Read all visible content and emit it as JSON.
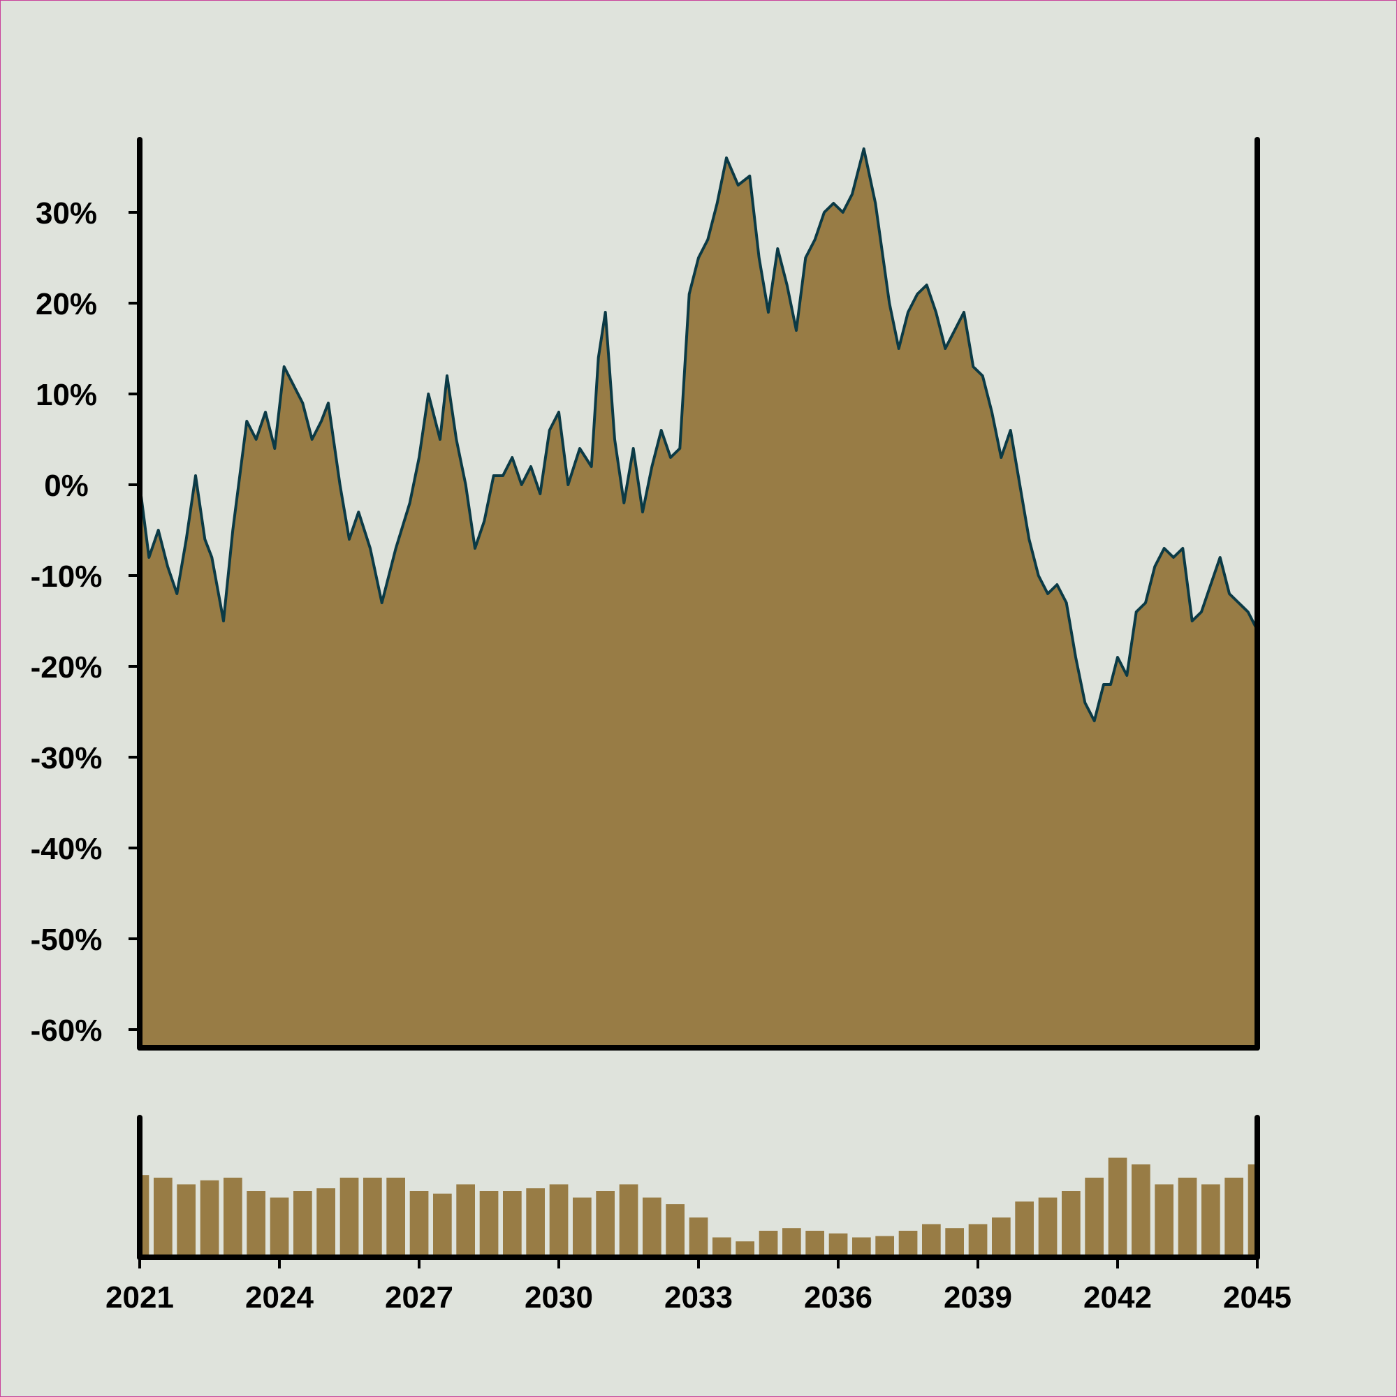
{
  "chart_data": [
    {
      "type": "area",
      "title": "",
      "xlabel": "",
      "ylabel": "",
      "xlim": [
        2021,
        2045
      ],
      "ylim": [
        -62,
        38
      ],
      "yticks": [
        -60,
        -50,
        -40,
        -30,
        -20,
        -10,
        0,
        10,
        20,
        30
      ],
      "ytick_labels": [
        "-60%",
        "-50%",
        "-40%",
        "-30%",
        "-20%",
        "-10%",
        "0%",
        "10%",
        "20%",
        "30%"
      ],
      "grid": false,
      "colors": {
        "fill": "#987c45",
        "line": "#0b3a45",
        "axis": "#000000",
        "background": "#dfe3dc"
      },
      "series": [
        {
          "x": [
            2021.0,
            2021.2,
            2021.4,
            2021.6,
            2021.8,
            2022.0,
            2022.2,
            2022.4,
            2022.55,
            2022.8,
            2023.0,
            2023.3,
            2023.5,
            2023.7,
            2023.9,
            2024.1,
            2024.3,
            2024.5,
            2024.7,
            2024.9,
            2025.05,
            2025.3,
            2025.5,
            2025.7,
            2025.95,
            2026.2,
            2026.5,
            2026.8,
            2027.0,
            2027.2,
            2027.45,
            2027.6,
            2027.8,
            2028.0,
            2028.2,
            2028.4,
            2028.6,
            2028.8,
            2029.0,
            2029.2,
            2029.4,
            2029.6,
            2029.8,
            2030.0,
            2030.2,
            2030.45,
            2030.7,
            2030.85,
            2031.0,
            2031.2,
            2031.4,
            2031.6,
            2031.8,
            2032.0,
            2032.2,
            2032.4,
            2032.6,
            2032.8,
            2033.0,
            2033.2,
            2033.4,
            2033.6,
            2033.85,
            2034.1,
            2034.3,
            2034.5,
            2034.7,
            2034.9,
            2035.1,
            2035.3,
            2035.5,
            2035.7,
            2035.9,
            2036.1,
            2036.3,
            2036.55,
            2036.8,
            2037.1,
            2037.3,
            2037.5,
            2037.7,
            2037.9,
            2038.1,
            2038.3,
            2038.5,
            2038.7,
            2038.9,
            2039.1,
            2039.3,
            2039.5,
            2039.7,
            2039.9,
            2040.1,
            2040.3,
            2040.5,
            2040.7,
            2040.9,
            2041.1,
            2041.3,
            2041.5,
            2041.7,
            2041.85,
            2042.0,
            2042.2,
            2042.4,
            2042.6,
            2042.8,
            2043.0,
            2043.2,
            2043.4,
            2043.6,
            2043.8,
            2044.0,
            2044.2,
            2044.4,
            2044.6,
            2044.8,
            2045.0
          ],
          "y": [
            0,
            -8,
            -5,
            -9,
            -12,
            -6,
            1,
            -6,
            -8,
            -15,
            -5,
            7,
            5,
            8,
            4,
            13,
            11,
            9,
            5,
            7,
            9,
            0,
            -6,
            -3,
            -7,
            -13,
            -7,
            -2,
            3,
            10,
            5,
            12,
            5,
            0,
            -7,
            -4,
            1,
            1,
            3,
            0,
            2,
            -1,
            6,
            8,
            0,
            4,
            2,
            14,
            19,
            5,
            -2,
            4,
            -3,
            2,
            6,
            3,
            4,
            21,
            25,
            27,
            31,
            36,
            33,
            34,
            25,
            19,
            26,
            22,
            17,
            25,
            27,
            30,
            31,
            30,
            32,
            37,
            31,
            20,
            15,
            19,
            21,
            22,
            19,
            15,
            17,
            19,
            13,
            12,
            8,
            3,
            6,
            0,
            -6,
            -10,
            -12,
            -11,
            -13,
            -19,
            -24,
            -26,
            -22,
            -22,
            -19,
            -21,
            -14,
            -13,
            -9,
            -7,
            -8,
            -7,
            -15,
            -14,
            -11,
            -8,
            -12,
            -13,
            -14,
            -16
          ]
        }
      ]
    },
    {
      "type": "bar",
      "title": "",
      "xlabel": "",
      "ylabel": "",
      "xlim": [
        2021,
        2045
      ],
      "xticks": [
        2021,
        2024,
        2027,
        2030,
        2033,
        2036,
        2039,
        2042,
        2045
      ],
      "xtick_labels": [
        "2021",
        "2024",
        "2027",
        "2030",
        "2033",
        "2036",
        "2039",
        "2042",
        "2045"
      ],
      "ylim": [
        0,
        1
      ],
      "series": [
        {
          "x": [
            2021.0,
            2021.5,
            2022.0,
            2022.5,
            2023.0,
            2023.5,
            2024.0,
            2024.5,
            2025.0,
            2025.5,
            2026.0,
            2026.5,
            2027.0,
            2027.5,
            2028.0,
            2028.5,
            2029.0,
            2029.5,
            2030.0,
            2030.5,
            2031.0,
            2031.5,
            2032.0,
            2032.5,
            2033.0,
            2033.5,
            2034.0,
            2034.5,
            2035.0,
            2035.5,
            2036.0,
            2036.5,
            2037.0,
            2037.5,
            2038.0,
            2038.5,
            2039.0,
            2039.5,
            2040.0,
            2040.5,
            2041.0,
            2041.5,
            2042.0,
            2042.5,
            2043.0,
            2043.5,
            2044.0,
            2044.5,
            2045.0
          ],
          "y": [
            0.62,
            0.6,
            0.55,
            0.58,
            0.6,
            0.5,
            0.45,
            0.5,
            0.52,
            0.6,
            0.6,
            0.6,
            0.5,
            0.48,
            0.55,
            0.5,
            0.5,
            0.52,
            0.55,
            0.45,
            0.5,
            0.55,
            0.45,
            0.4,
            0.3,
            0.15,
            0.12,
            0.2,
            0.22,
            0.2,
            0.18,
            0.15,
            0.16,
            0.2,
            0.25,
            0.22,
            0.25,
            0.3,
            0.42,
            0.45,
            0.5,
            0.6,
            0.75,
            0.7,
            0.55,
            0.6,
            0.55,
            0.6,
            0.7
          ]
        }
      ]
    }
  ]
}
